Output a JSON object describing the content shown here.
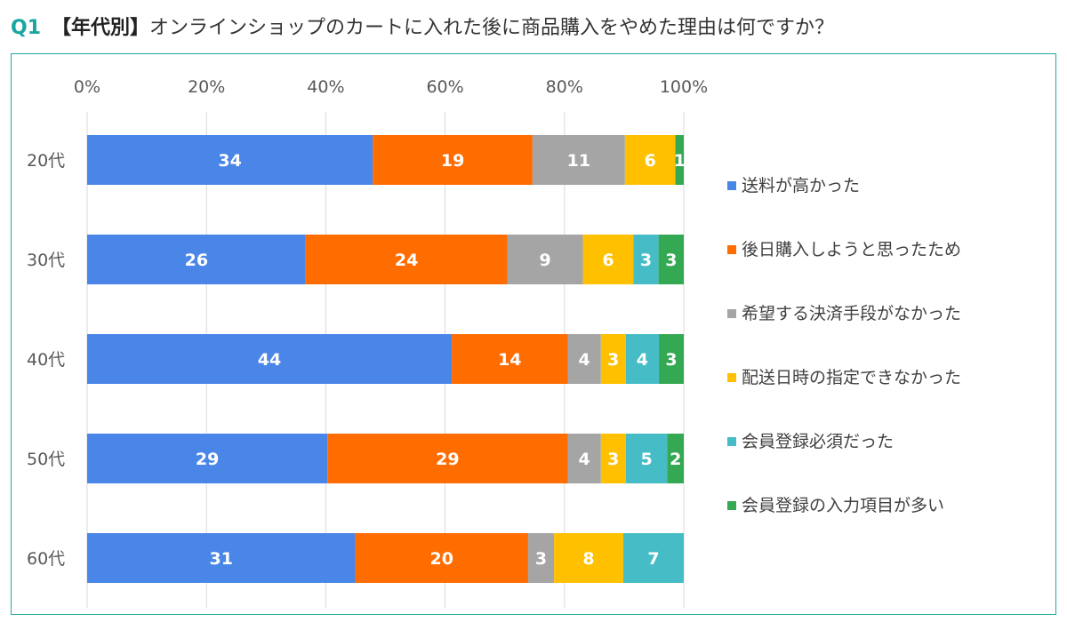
{
  "header": {
    "qnum": "Q1",
    "tag": "【年代別】",
    "question": "オンラインショップのカートに入れた後に商品購入をやめた理由は何ですか？"
  },
  "chart_data": {
    "type": "bar",
    "orientation": "horizontal",
    "stacked": "percent",
    "categories": [
      "20代",
      "30代",
      "40代",
      "50代",
      "60代"
    ],
    "x_ticks": [
      "0%",
      "20%",
      "40%",
      "60%",
      "80%",
      "100%"
    ],
    "xlim": [
      0,
      100
    ],
    "grid": "vertical",
    "legend_position": "right",
    "series": [
      {
        "name": "送料が高かった",
        "color": "#4a86e8",
        "values": [
          34,
          26,
          44,
          29,
          31
        ]
      },
      {
        "name": "後日購入しようと思ったため",
        "color": "#ff6d01",
        "values": [
          19,
          24,
          14,
          29,
          20
        ]
      },
      {
        "name": "希望する決済手段がなかった",
        "color": "#a5a5a5",
        "values": [
          11,
          9,
          4,
          4,
          3
        ]
      },
      {
        "name": "配送日時の指定できなかった",
        "color": "#ffc000",
        "values": [
          6,
          6,
          3,
          3,
          8
        ]
      },
      {
        "name": "会員登録必須だった",
        "color": "#46bdc6",
        "values": [
          null,
          3,
          4,
          5,
          7
        ]
      },
      {
        "name": "会員登録の入力項目が多い",
        "color": "#34a853",
        "values": [
          1,
          3,
          3,
          2,
          null
        ]
      }
    ]
  }
}
